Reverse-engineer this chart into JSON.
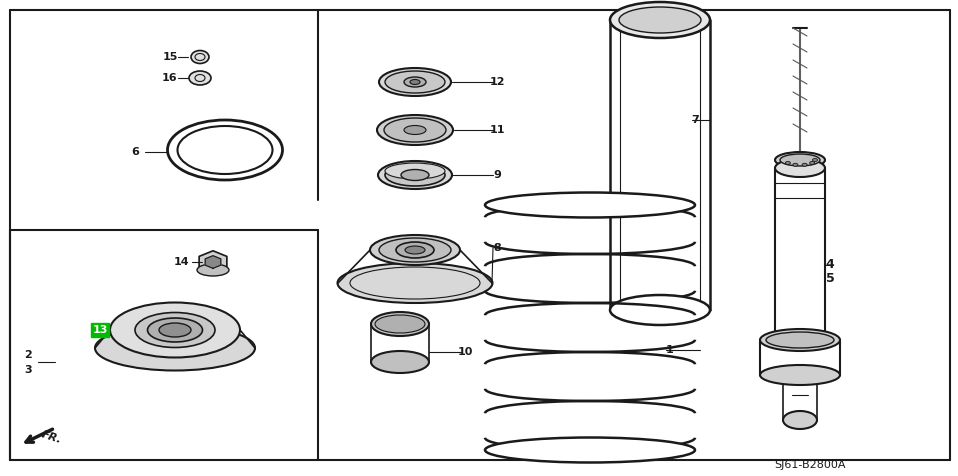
{
  "bg_color": "#ffffff",
  "line_color": "#1a1a1a",
  "diagram_code": "SJ61-B2800A",
  "highlight_13": "#00bb00",
  "figsize": [
    9.58,
    4.76
  ],
  "dpi": 100
}
